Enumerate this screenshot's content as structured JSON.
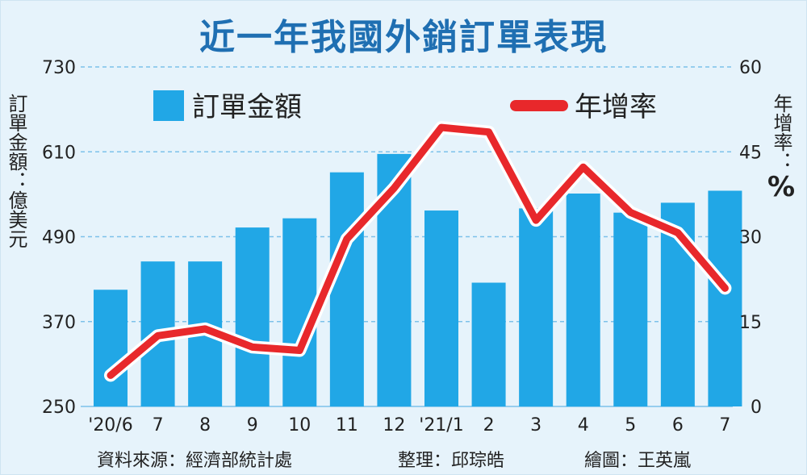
{
  "title": "近一年我國外銷訂單表現",
  "left_axis_label": "訂單金額：億美元",
  "right_axis_label_text": "年增率：",
  "right_axis_unit": "%",
  "footer": {
    "source": "資料來源：經濟部統計處",
    "editor": "整理：邱琮皓",
    "artist": "繪圖：王英嵐"
  },
  "colors": {
    "bars": "#21a7e6",
    "line": "#e8282b",
    "gridline": "#7cc2ea",
    "title": "#1f6fb2",
    "background": "#e6f3fb"
  },
  "chart_data": {
    "type": "bar",
    "title": "近一年我國外銷訂單表現",
    "categories": [
      "'20/6",
      "7",
      "8",
      "9",
      "10",
      "11",
      "12",
      "'21/1",
      "2",
      "3",
      "4",
      "5",
      "6",
      "7"
    ],
    "series": [
      {
        "name": "訂單金額",
        "type": "bar",
        "axis": "left",
        "values": [
          415,
          455,
          455,
          503,
          516,
          581,
          607,
          527,
          425,
          530,
          551,
          524,
          538,
          555
        ]
      },
      {
        "name": "年增率",
        "type": "line",
        "axis": "right",
        "values": [
          5.5,
          12.5,
          13.7,
          10.5,
          9.9,
          29.6,
          38.6,
          49.3,
          48.5,
          32.9,
          42.3,
          34.3,
          30.7,
          20.9
        ]
      }
    ],
    "left_axis": {
      "label": "訂單金額：億美元",
      "ylim": [
        250,
        730
      ],
      "ticks": [
        250,
        370,
        490,
        610,
        730
      ]
    },
    "right_axis": {
      "label": "年增率：%",
      "ylim": [
        0,
        60
      ],
      "ticks": [
        0,
        15,
        30,
        45,
        60
      ]
    },
    "grid": true,
    "legend_position": "top"
  }
}
